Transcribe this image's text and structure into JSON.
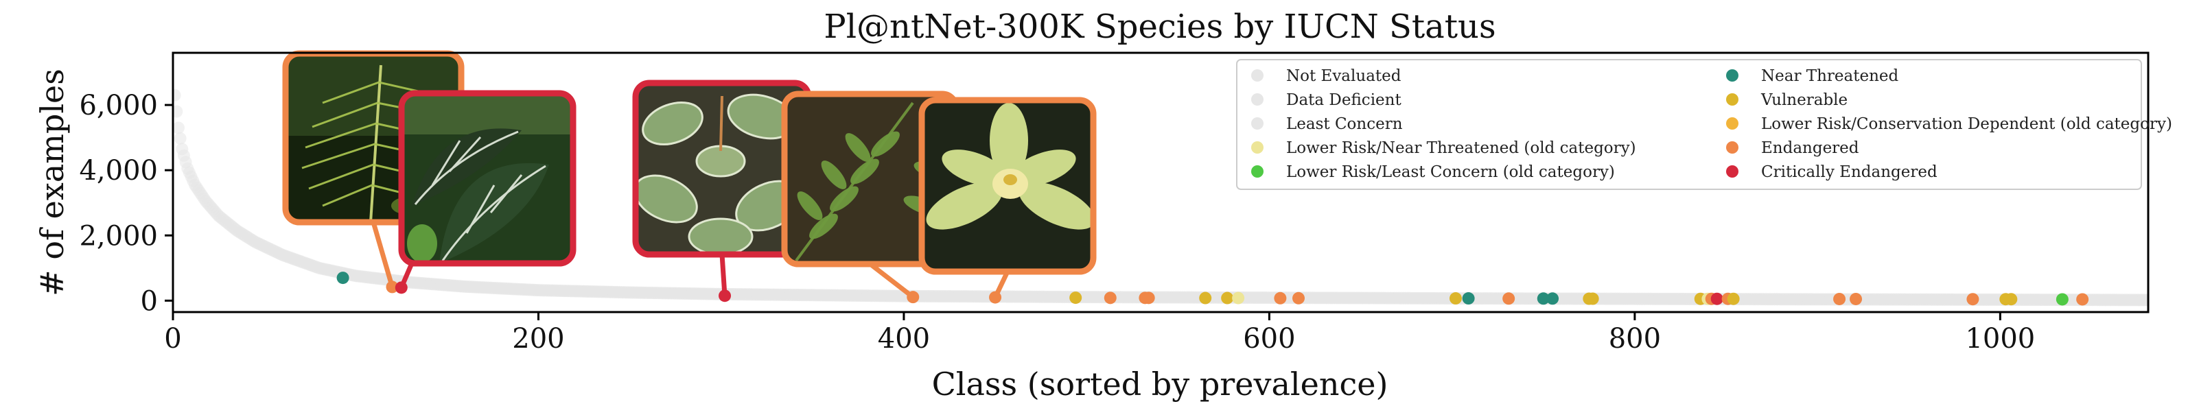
{
  "chart_data": {
    "type": "scatter",
    "title": "Pl@ntNet-300K Species by IUCN Status",
    "xlabel": "Class (sorted by prevalence)",
    "ylabel": "# of examples",
    "xlim": [
      0,
      1081
    ],
    "ylim": [
      -350,
      7600
    ],
    "x_ticks": [
      0,
      200,
      400,
      600,
      800,
      1000
    ],
    "x_tick_labels": [
      "0",
      "200",
      "400",
      "600",
      "800",
      "1000"
    ],
    "y_ticks": [
      0,
      2000,
      4000,
      6000
    ],
    "y_tick_labels": [
      "0",
      "2,000",
      "4,000",
      "6,000"
    ],
    "grid": false,
    "legend_position": "top-right",
    "colors": {
      "not_evaluated": "#e6e6e6",
      "data_deficient": "#e6e6e6",
      "least_concern": "#e6e6e6",
      "lower_risk_near_threatened_old": "#ede597",
      "lower_risk_least_concern_old": "#4fc944",
      "near_threatened": "#268c7a",
      "vulnerable": "#dcb52a",
      "lower_risk_conservation_dependent_old": "#f2b43a",
      "endangered": "#ef8647",
      "critically_endangered": "#d6283c"
    },
    "legend": [
      {
        "label": "Not Evaluated",
        "color": "#e6e6e6"
      },
      {
        "label": "Data Deficient",
        "color": "#e6e6e6"
      },
      {
        "label": "Least Concern",
        "color": "#e6e6e6"
      },
      {
        "label": "Lower Risk/Near Threatened (old category)",
        "color": "#ede597"
      },
      {
        "label": "Lower Risk/Least Concern (old category)",
        "color": "#4fc944"
      },
      {
        "label": "Near Threatened",
        "color": "#268c7a"
      },
      {
        "label": "Vulnerable",
        "color": "#dcb52a"
      },
      {
        "label": "Lower Risk/Conservation Dependent (old category)",
        "color": "#f2b43a"
      },
      {
        "label": "Endangered",
        "color": "#ef8647"
      },
      {
        "label": "Critically Endangered",
        "color": "#d6283c"
      }
    ],
    "background_series": {
      "name": "Not Evaluated / Data Deficient / Least Concern",
      "x": [
        1,
        3,
        5,
        8,
        12,
        18,
        25,
        35,
        45,
        60,
        80,
        100,
        130,
        160,
        200,
        250,
        300,
        400,
        500,
        600,
        700,
        800,
        900,
        1000,
        1080
      ],
      "y": [
        6300,
        5300,
        4650,
        4050,
        3550,
        3050,
        2600,
        2150,
        1800,
        1400,
        1000,
        760,
        560,
        430,
        320,
        250,
        200,
        140,
        110,
        90,
        70,
        55,
        40,
        30,
        20
      ]
    },
    "points": [
      {
        "x": 93,
        "y": 700,
        "category": "Near Threatened"
      },
      {
        "x": 120,
        "y": 420,
        "category": "Endangered"
      },
      {
        "x": 125,
        "y": 400,
        "category": "Critically Endangered"
      },
      {
        "x": 302,
        "y": 150,
        "category": "Critically Endangered"
      },
      {
        "x": 405,
        "y": 110,
        "category": "Endangered"
      },
      {
        "x": 450,
        "y": 100,
        "category": "Endangered"
      },
      {
        "x": 494,
        "y": 90,
        "category": "Vulnerable"
      },
      {
        "x": 513,
        "y": 85,
        "category": "Endangered"
      },
      {
        "x": 532,
        "y": 85,
        "category": "Endangered"
      },
      {
        "x": 534,
        "y": 85,
        "category": "Endangered"
      },
      {
        "x": 565,
        "y": 80,
        "category": "Vulnerable"
      },
      {
        "x": 577,
        "y": 80,
        "category": "Vulnerable"
      },
      {
        "x": 583,
        "y": 80,
        "category": "Lower Risk/Near Threatened (old category)"
      },
      {
        "x": 606,
        "y": 75,
        "category": "Endangered"
      },
      {
        "x": 616,
        "y": 75,
        "category": "Endangered"
      },
      {
        "x": 702,
        "y": 70,
        "category": "Vulnerable"
      },
      {
        "x": 709,
        "y": 70,
        "category": "Near Threatened"
      },
      {
        "x": 731,
        "y": 65,
        "category": "Endangered"
      },
      {
        "x": 750,
        "y": 65,
        "category": "Near Threatened"
      },
      {
        "x": 755,
        "y": 65,
        "category": "Near Threatened"
      },
      {
        "x": 775,
        "y": 60,
        "category": "Vulnerable"
      },
      {
        "x": 777,
        "y": 60,
        "category": "Vulnerable"
      },
      {
        "x": 836,
        "y": 55,
        "category": "Vulnerable"
      },
      {
        "x": 840,
        "y": 55,
        "category": "Lower Risk/Near Threatened (old category)"
      },
      {
        "x": 842,
        "y": 55,
        "category": "Endangered"
      },
      {
        "x": 845,
        "y": 55,
        "category": "Critically Endangered"
      },
      {
        "x": 851,
        "y": 55,
        "category": "Endangered"
      },
      {
        "x": 854,
        "y": 55,
        "category": "Vulnerable"
      },
      {
        "x": 912,
        "y": 50,
        "category": "Endangered"
      },
      {
        "x": 921,
        "y": 50,
        "category": "Endangered"
      },
      {
        "x": 985,
        "y": 45,
        "category": "Endangered"
      },
      {
        "x": 1003,
        "y": 45,
        "category": "Vulnerable"
      },
      {
        "x": 1006,
        "y": 45,
        "category": "Vulnerable"
      },
      {
        "x": 1034,
        "y": 40,
        "category": "Lower Risk/Least Concern (old category)"
      },
      {
        "x": 1045,
        "y": 40,
        "category": "Endangered"
      }
    ],
    "image_callouts": [
      {
        "target_x": 120,
        "target_y": 420,
        "category": "Endangered",
        "subject": "tall-fern-frond"
      },
      {
        "target_x": 125,
        "target_y": 400,
        "category": "Critically Endangered",
        "subject": "alocasia-striped-leaves"
      },
      {
        "target_x": 302,
        "target_y": 150,
        "category": "Critically Endangered",
        "subject": "peperomia-striped-leaves"
      },
      {
        "target_x": 405,
        "target_y": 110,
        "category": "Endangered",
        "subject": "pinnate-fern-leaves"
      },
      {
        "target_x": 450,
        "target_y": 100,
        "category": "Endangered",
        "subject": "pale-green-orchid"
      }
    ]
  }
}
